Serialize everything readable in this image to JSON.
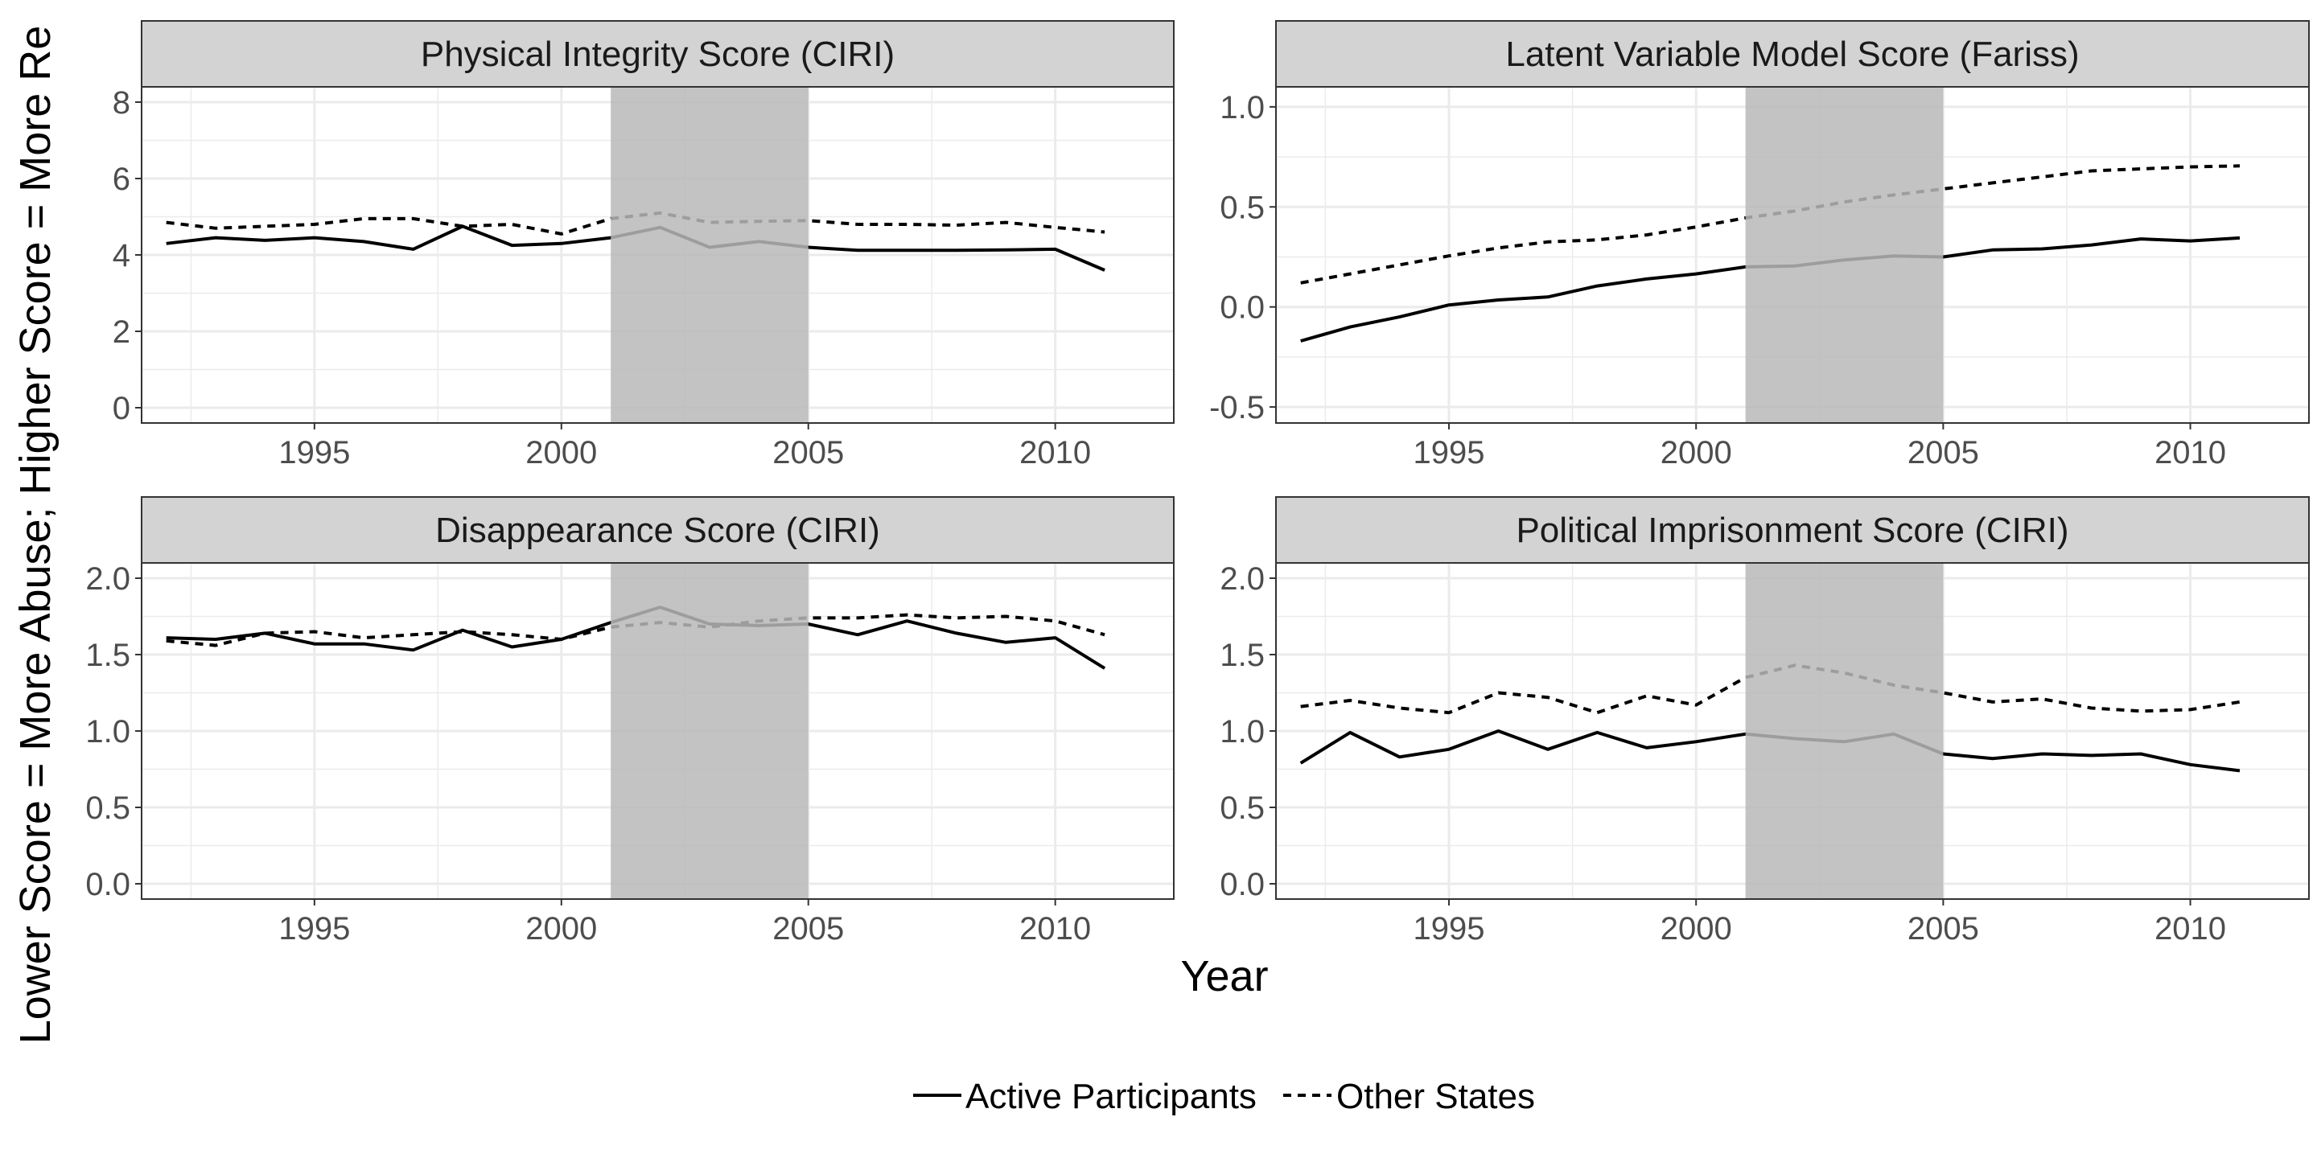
{
  "figure": {
    "xlabel": "Year",
    "ylabel": "Lower Score = More Abuse; Higher Score = More Re",
    "shade": {
      "from": 2001,
      "to": 2005,
      "color": "#b8b8b8"
    },
    "colors": {
      "strip_fill": "#d3d3d3",
      "strip_border": "#333333",
      "grid": "#ebebeb",
      "panel_border": "#333333",
      "line": "#000000"
    }
  },
  "legend": {
    "items": [
      {
        "label": "Active Participants",
        "dash": "solid"
      },
      {
        "label": "Other States",
        "dash": "dashed"
      }
    ]
  },
  "chart_data": [
    {
      "type": "line",
      "title": "Physical Integrity Score (CIRI)",
      "xlim": [
        1991.5,
        2012.4
      ],
      "ylim": [
        -0.4,
        8.4
      ],
      "yticks": [
        0,
        2,
        4,
        6,
        8
      ],
      "xticks": [
        1995,
        2000,
        2005,
        2010
      ],
      "x": [
        1992,
        1993,
        1994,
        1995,
        1996,
        1997,
        1998,
        1999,
        2000,
        2001,
        2002,
        2003,
        2004,
        2005,
        2006,
        2007,
        2008,
        2009,
        2010,
        2011
      ],
      "series": [
        {
          "name": "Active Participants",
          "values": [
            4.3,
            4.45,
            4.38,
            4.45,
            4.35,
            4.15,
            4.75,
            4.25,
            4.3,
            4.45,
            4.72,
            4.2,
            4.35,
            4.2,
            4.12,
            4.12,
            4.12,
            4.13,
            4.15,
            3.6
          ]
        },
        {
          "name": "Other States",
          "values": [
            4.85,
            4.7,
            4.75,
            4.8,
            4.95,
            4.95,
            4.75,
            4.8,
            4.55,
            4.95,
            5.1,
            4.85,
            4.88,
            4.9,
            4.8,
            4.8,
            4.78,
            4.85,
            4.72,
            4.6
          ]
        }
      ]
    },
    {
      "type": "line",
      "title": "Latent Variable Model Score (Fariss)",
      "xlim": [
        1991.5,
        2012.4
      ],
      "ylim": [
        -0.58,
        1.1
      ],
      "yticks": [
        -0.5,
        0.0,
        0.5,
        1.0
      ],
      "ytick_labels": [
        "-0.5",
        "0.0",
        "0.5",
        "1.0"
      ],
      "xticks": [
        1995,
        2000,
        2005,
        2010
      ],
      "x": [
        1992,
        1993,
        1994,
        1995,
        1996,
        1997,
        1998,
        1999,
        2000,
        2001,
        2002,
        2003,
        2004,
        2005,
        2006,
        2007,
        2008,
        2009,
        2010,
        2011
      ],
      "series": [
        {
          "name": "Active Participants",
          "values": [
            -0.17,
            -0.1,
            -0.05,
            0.01,
            0.035,
            0.05,
            0.105,
            0.14,
            0.165,
            0.2,
            0.205,
            0.235,
            0.255,
            0.25,
            0.285,
            0.29,
            0.31,
            0.34,
            0.33,
            0.345
          ]
        },
        {
          "name": "Other States",
          "values": [
            0.12,
            0.165,
            0.21,
            0.255,
            0.295,
            0.325,
            0.335,
            0.36,
            0.4,
            0.445,
            0.48,
            0.525,
            0.56,
            0.59,
            0.62,
            0.65,
            0.68,
            0.69,
            0.7,
            0.705
          ]
        }
      ]
    },
    {
      "type": "line",
      "title": "Disappearance Score (CIRI)",
      "xlim": [
        1991.5,
        2012.4
      ],
      "ylim": [
        -0.1,
        2.1
      ],
      "yticks": [
        0.0,
        0.5,
        1.0,
        1.5,
        2.0
      ],
      "ytick_labels": [
        "0.0",
        "0.5",
        "1.0",
        "1.5",
        "2.0"
      ],
      "xticks": [
        1995,
        2000,
        2005,
        2010
      ],
      "x": [
        1992,
        1993,
        1994,
        1995,
        1996,
        1997,
        1998,
        1999,
        2000,
        2001,
        2002,
        2003,
        2004,
        2005,
        2006,
        2007,
        2008,
        2009,
        2010,
        2011
      ],
      "series": [
        {
          "name": "Active Participants",
          "values": [
            1.61,
            1.6,
            1.64,
            1.57,
            1.57,
            1.53,
            1.66,
            1.55,
            1.6,
            1.71,
            1.81,
            1.7,
            1.69,
            1.7,
            1.63,
            1.72,
            1.64,
            1.58,
            1.61,
            1.41
          ]
        },
        {
          "name": "Other States",
          "values": [
            1.59,
            1.56,
            1.64,
            1.65,
            1.61,
            1.63,
            1.65,
            1.63,
            1.6,
            1.68,
            1.71,
            1.68,
            1.72,
            1.74,
            1.74,
            1.76,
            1.74,
            1.75,
            1.72,
            1.63
          ]
        }
      ]
    },
    {
      "type": "line",
      "title": "Political Imprisonment Score (CIRI)",
      "xlim": [
        1991.5,
        2012.4
      ],
      "ylim": [
        -0.1,
        2.1
      ],
      "yticks": [
        0.0,
        0.5,
        1.0,
        1.5,
        2.0
      ],
      "ytick_labels": [
        "0.0",
        "0.5",
        "1.0",
        "1.5",
        "2.0"
      ],
      "xticks": [
        1995,
        2000,
        2005,
        2010
      ],
      "x": [
        1992,
        1993,
        1994,
        1995,
        1996,
        1997,
        1998,
        1999,
        2000,
        2001,
        2002,
        2003,
        2004,
        2005,
        2006,
        2007,
        2008,
        2009,
        2010,
        2011
      ],
      "series": [
        {
          "name": "Active Participants",
          "values": [
            0.79,
            0.99,
            0.83,
            0.88,
            1.0,
            0.88,
            0.99,
            0.89,
            0.93,
            0.98,
            0.95,
            0.93,
            0.98,
            0.85,
            0.82,
            0.85,
            0.84,
            0.85,
            0.78,
            0.74
          ]
        },
        {
          "name": "Other States",
          "values": [
            1.16,
            1.2,
            1.15,
            1.12,
            1.25,
            1.22,
            1.12,
            1.23,
            1.17,
            1.35,
            1.43,
            1.38,
            1.3,
            1.25,
            1.19,
            1.21,
            1.15,
            1.13,
            1.14,
            1.19
          ]
        }
      ]
    }
  ]
}
